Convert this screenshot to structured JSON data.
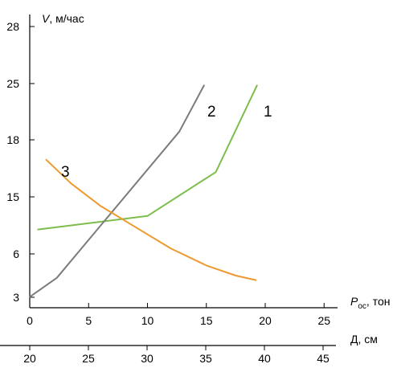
{
  "chart_data": {
    "type": "line",
    "y_axis": {
      "label_symbol": "V",
      "label_unit": ", м/час",
      "ticks": [
        "3",
        "6",
        "15",
        "18",
        "25",
        "28"
      ]
    },
    "x_axis": {
      "label_symbol": "P",
      "label_subscript": "ос",
      "label_unit": ", тон",
      "ticks": [
        0,
        5,
        10,
        15,
        20,
        25
      ]
    },
    "x2_axis": {
      "label": "Д, см",
      "ticks": [
        20,
        25,
        30,
        35,
        40,
        45
      ]
    },
    "series": [
      {
        "name": "1",
        "color": "#7dbd4c",
        "points": [
          [
            0.7,
            6.1
          ],
          [
            10,
            7.3
          ],
          [
            15.8,
            11.2
          ],
          [
            19.3,
            18.9
          ]
        ]
      },
      {
        "name": "2",
        "color": "#7b7b7b",
        "points": [
          [
            0,
            0.1
          ],
          [
            2.3,
            1.8
          ],
          [
            12.7,
            14.8
          ],
          [
            14.8,
            18.9
          ]
        ]
      },
      {
        "name": "3",
        "color": "#ec9a2e",
        "points": [
          [
            1.4,
            12.3
          ],
          [
            3.5,
            10.2
          ],
          [
            6,
            8.2
          ],
          [
            9,
            6.3
          ],
          [
            12,
            4.4
          ],
          [
            15,
            2.9
          ],
          [
            17.5,
            2.0
          ],
          [
            19.2,
            1.6
          ]
        ]
      }
    ]
  }
}
